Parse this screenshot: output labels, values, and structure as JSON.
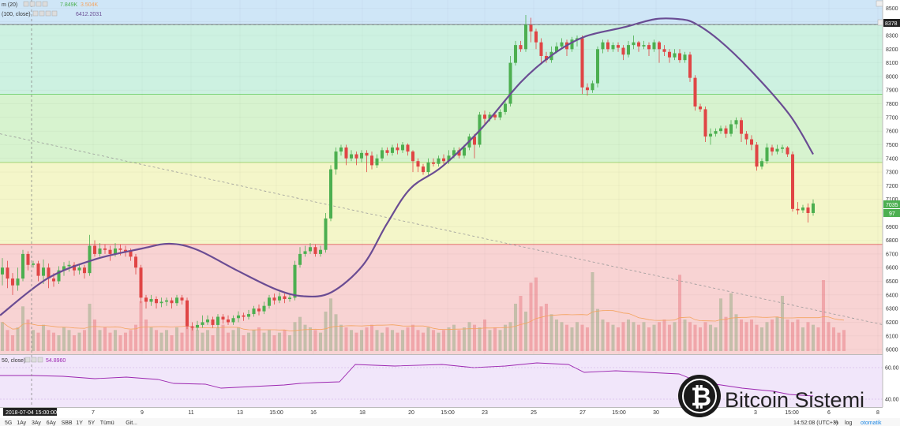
{
  "legend": {
    "line1_label": "m (20)",
    "line1_val1": "7.849K",
    "line1_val2": "3.504K",
    "line2_label": "(100, close)",
    "line2_val": "6412.2031",
    "rsi_label": "50, close)",
    "rsi_val": "54.8960"
  },
  "price_badges": {
    "top": "8378",
    "cur1": "7035",
    "cur2": "97"
  },
  "crosshair_date": "2018-07-04 15:00:00",
  "xaxis_labels": [
    "7",
    "9",
    "11",
    "13",
    "15:00",
    "16",
    "18",
    "20",
    "15:00",
    "23",
    "25",
    "27",
    "15:00",
    "30",
    "3",
    "15:00",
    "6",
    "8"
  ],
  "timeframes": [
    "5G",
    "1Ay",
    "3Ay",
    "6Ay",
    "SBB",
    "1Y",
    "5Y",
    "Tümü",
    "Git..."
  ],
  "bottom_right": {
    "clock": "14:52:08 (UTC+3)",
    "pct": "%",
    "log": "log",
    "auto": "otomatik"
  },
  "watermark": {
    "text": "Bitcoin Sistemi"
  },
  "chart_data": {
    "type": "candlestick",
    "y_ticks": [
      6000,
      6100,
      6200,
      6300,
      6400,
      6500,
      6600,
      6700,
      6800,
      6900,
      7000,
      7100,
      7200,
      7300,
      7400,
      7500,
      7600,
      7700,
      7800,
      7900,
      8000,
      8100,
      8200,
      8300,
      8400,
      8500
    ],
    "rsi_ticks": [
      "60.00",
      "40.00"
    ],
    "ylim": [
      5960,
      8560
    ],
    "zones": [
      {
        "from": 6770,
        "to": 5960,
        "color": "#f8d3d3"
      },
      {
        "from": 7370,
        "to": 6770,
        "color": "#f4f6c9"
      },
      {
        "from": 7870,
        "to": 7370,
        "color": "#d7f3cf"
      },
      {
        "from": 8380,
        "to": 7870,
        "color": "#cdf1e1"
      },
      {
        "from": 8560,
        "to": 8380,
        "color": "#cfe6f7"
      }
    ],
    "colors": {
      "up": "#4caf50",
      "down": "#e04545",
      "ma": "#6a4c93",
      "rsi": "#9c27b0",
      "vol_ma": "#f4a460"
    },
    "candles": [
      [
        6550,
        6600,
        6470,
        6670
      ],
      [
        6600,
        6520,
        6450,
        6650
      ],
      [
        6520,
        6470,
        6400,
        6560
      ],
      [
        6470,
        6520,
        6430,
        6600
      ],
      [
        6520,
        6700,
        6500,
        6730
      ],
      [
        6700,
        6620,
        6580,
        6720
      ],
      [
        6620,
        6630,
        6600,
        6650
      ],
      [
        6630,
        6540,
        6500,
        6650
      ],
      [
        6540,
        6600,
        6480,
        6660
      ],
      [
        6600,
        6520,
        6450,
        6630
      ],
      [
        6520,
        6500,
        6460,
        6560
      ],
      [
        6500,
        6580,
        6480,
        6610
      ],
      [
        6580,
        6610,
        6540,
        6640
      ],
      [
        6610,
        6620,
        6570,
        6650
      ],
      [
        6620,
        6580,
        6540,
        6640
      ],
      [
        6580,
        6600,
        6550,
        6630
      ],
      [
        6600,
        6560,
        6520,
        6620
      ],
      [
        6560,
        6760,
        6540,
        6840
      ],
      [
        6760,
        6700,
        6680,
        6800
      ],
      [
        6700,
        6740,
        6680,
        6780
      ],
      [
        6740,
        6730,
        6700,
        6770
      ],
      [
        6730,
        6700,
        6650,
        6760
      ],
      [
        6700,
        6740,
        6680,
        6780
      ],
      [
        6740,
        6730,
        6690,
        6770
      ],
      [
        6730,
        6720,
        6680,
        6760
      ],
      [
        6720,
        6680,
        6650,
        6740
      ],
      [
        6680,
        6600,
        6550,
        6700
      ],
      [
        6600,
        6380,
        6340,
        6620
      ],
      [
        6380,
        6350,
        6300,
        6400
      ],
      [
        6350,
        6370,
        6320,
        6400
      ],
      [
        6370,
        6340,
        6300,
        6390
      ],
      [
        6340,
        6350,
        6310,
        6380
      ],
      [
        6350,
        6360,
        6320,
        6380
      ],
      [
        6360,
        6340,
        6300,
        6380
      ],
      [
        6340,
        6380,
        6320,
        6400
      ],
      [
        6380,
        6360,
        6330,
        6400
      ],
      [
        6360,
        6170,
        6150,
        6380
      ],
      [
        6170,
        6160,
        6140,
        6200
      ],
      [
        6160,
        6180,
        6140,
        6210
      ],
      [
        6180,
        6200,
        6160,
        6250
      ],
      [
        6200,
        6220,
        6180,
        6250
      ],
      [
        6220,
        6180,
        6160,
        6240
      ],
      [
        6180,
        6240,
        6160,
        6260
      ],
      [
        6240,
        6220,
        6190,
        6260
      ],
      [
        6220,
        6200,
        6180,
        6250
      ],
      [
        6200,
        6230,
        6180,
        6250
      ],
      [
        6230,
        6250,
        6200,
        6280
      ],
      [
        6250,
        6240,
        6210,
        6270
      ],
      [
        6240,
        6260,
        6220,
        6290
      ],
      [
        6260,
        6300,
        6240,
        6320
      ],
      [
        6300,
        6280,
        6250,
        6330
      ],
      [
        6280,
        6320,
        6260,
        6350
      ],
      [
        6320,
        6380,
        6300,
        6400
      ],
      [
        6380,
        6360,
        6330,
        6410
      ],
      [
        6360,
        6390,
        6340,
        6420
      ],
      [
        6390,
        6370,
        6340,
        6410
      ],
      [
        6370,
        6380,
        6350,
        6410
      ],
      [
        6380,
        6620,
        6360,
        6650
      ],
      [
        6620,
        6700,
        6600,
        6750
      ],
      [
        6700,
        6720,
        6680,
        6760
      ],
      [
        6720,
        6750,
        6700,
        6780
      ],
      [
        6750,
        6700,
        6680,
        6770
      ],
      [
        6700,
        6730,
        6680,
        6760
      ],
      [
        6730,
        6960,
        6710,
        7000
      ],
      [
        6960,
        7320,
        6940,
        7350
      ],
      [
        7320,
        7450,
        7280,
        7480
      ],
      [
        7450,
        7480,
        7420,
        7500
      ],
      [
        7480,
        7400,
        7350,
        7500
      ],
      [
        7400,
        7430,
        7380,
        7460
      ],
      [
        7430,
        7400,
        7350,
        7450
      ],
      [
        7400,
        7440,
        7370,
        7460
      ],
      [
        7440,
        7420,
        7300,
        7460
      ],
      [
        7420,
        7350,
        7320,
        7450
      ],
      [
        7350,
        7400,
        7330,
        7430
      ],
      [
        7400,
        7460,
        7380,
        7480
      ],
      [
        7460,
        7440,
        7420,
        7480
      ],
      [
        7440,
        7480,
        7420,
        7500
      ],
      [
        7480,
        7460,
        7430,
        7510
      ],
      [
        7460,
        7500,
        7440,
        7520
      ],
      [
        7500,
        7450,
        7420,
        7510
      ],
      [
        7450,
        7380,
        7300,
        7460
      ],
      [
        7380,
        7340,
        7300,
        7400
      ],
      [
        7340,
        7300,
        7280,
        7360
      ],
      [
        7300,
        7370,
        7280,
        7400
      ],
      [
        7370,
        7360,
        7340,
        7400
      ],
      [
        7360,
        7400,
        7340,
        7420
      ],
      [
        7400,
        7380,
        7360,
        7430
      ],
      [
        7380,
        7420,
        7360,
        7460
      ],
      [
        7420,
        7460,
        7400,
        7480
      ],
      [
        7460,
        7420,
        7400,
        7480
      ],
      [
        7420,
        7480,
        7400,
        7500
      ],
      [
        7480,
        7560,
        7460,
        7580
      ],
      [
        7560,
        7500,
        7400,
        7580
      ],
      [
        7500,
        7720,
        7480,
        7740
      ],
      [
        7720,
        7690,
        7650,
        7750
      ],
      [
        7690,
        7720,
        7670,
        7740
      ],
      [
        7720,
        7700,
        7680,
        7740
      ],
      [
        7700,
        7740,
        7680,
        7760
      ],
      [
        7740,
        7800,
        7720,
        7820
      ],
      [
        7800,
        8100,
        7780,
        8150
      ],
      [
        8100,
        8230,
        8080,
        8260
      ],
      [
        8230,
        8200,
        8180,
        8260
      ],
      [
        8200,
        8380,
        8180,
        8450
      ],
      [
        8380,
        8330,
        8250,
        8430
      ],
      [
        8330,
        8250,
        8200,
        8350
      ],
      [
        8250,
        8150,
        8100,
        8280
      ],
      [
        8150,
        8120,
        8100,
        8180
      ],
      [
        8120,
        8180,
        8100,
        8220
      ],
      [
        8180,
        8220,
        8170,
        8250
      ],
      [
        8220,
        8250,
        8200,
        8280
      ],
      [
        8250,
        8200,
        8150,
        8270
      ],
      [
        8200,
        8270,
        8180,
        8290
      ],
      [
        8270,
        8280,
        8220,
        8300
      ],
      [
        8280,
        7920,
        7870,
        8300
      ],
      [
        7920,
        7900,
        7860,
        7950
      ],
      [
        7900,
        7950,
        7880,
        7970
      ],
      [
        7950,
        8200,
        7920,
        8220
      ],
      [
        8200,
        8250,
        8170,
        8270
      ],
      [
        8250,
        8200,
        8180,
        8270
      ],
      [
        8200,
        8230,
        8180,
        8250
      ],
      [
        8230,
        8210,
        8180,
        8250
      ],
      [
        8210,
        8160,
        8120,
        8230
      ],
      [
        8160,
        8230,
        8140,
        8260
      ],
      [
        8230,
        8250,
        8200,
        8300
      ],
      [
        8250,
        8220,
        8180,
        8260
      ],
      [
        8220,
        8230,
        8200,
        8260
      ],
      [
        8230,
        8200,
        8150,
        8250
      ],
      [
        8200,
        8250,
        8180,
        8270
      ],
      [
        8250,
        8200,
        8100,
        8260
      ],
      [
        8200,
        8180,
        8150,
        8230
      ],
      [
        8180,
        8140,
        8100,
        8200
      ],
      [
        8140,
        8170,
        8120,
        8200
      ],
      [
        8170,
        8120,
        8100,
        8200
      ],
      [
        8120,
        8160,
        8100,
        8180
      ],
      [
        8160,
        7990,
        7960,
        8180
      ],
      [
        7990,
        7780,
        7750,
        8010
      ],
      [
        7780,
        7760,
        7740,
        7800
      ],
      [
        7760,
        7560,
        7520,
        7780
      ],
      [
        7560,
        7580,
        7500,
        7620
      ],
      [
        7580,
        7600,
        7560,
        7620
      ],
      [
        7600,
        7620,
        7580,
        7640
      ],
      [
        7620,
        7580,
        7550,
        7640
      ],
      [
        7580,
        7650,
        7560,
        7680
      ],
      [
        7650,
        7680,
        7620,
        7700
      ],
      [
        7680,
        7580,
        7520,
        7700
      ],
      [
        7580,
        7540,
        7500,
        7600
      ],
      [
        7540,
        7500,
        7460,
        7570
      ],
      [
        7500,
        7340,
        7310,
        7520
      ],
      [
        7340,
        7380,
        7320,
        7400
      ],
      [
        7380,
        7480,
        7360,
        7510
      ],
      [
        7480,
        7450,
        7420,
        7500
      ],
      [
        7450,
        7470,
        7430,
        7500
      ],
      [
        7470,
        7480,
        7440,
        7500
      ],
      [
        7480,
        7430,
        7410,
        7490
      ],
      [
        7430,
        7030,
        7010,
        7450
      ],
      [
        7030,
        7020,
        6990,
        7080
      ],
      [
        7020,
        7040,
        7000,
        7060
      ],
      [
        7040,
        7000,
        6930,
        7070
      ],
      [
        7000,
        7070,
        6980,
        7100
      ]
    ],
    "volume": [
      0.55,
      0.4,
      0.3,
      0.45,
      0.85,
      0.6,
      0.4,
      0.35,
      0.5,
      0.4,
      0.35,
      0.3,
      0.45,
      0.4,
      0.3,
      0.35,
      0.4,
      0.9,
      0.6,
      0.4,
      0.45,
      0.35,
      0.4,
      0.3,
      0.35,
      0.4,
      0.5,
      0.95,
      0.6,
      0.45,
      0.4,
      0.35,
      0.4,
      0.3,
      0.45,
      0.35,
      0.7,
      0.45,
      0.4,
      0.35,
      0.4,
      0.3,
      0.45,
      0.5,
      0.35,
      0.4,
      0.45,
      0.3,
      0.35,
      0.4,
      0.45,
      0.35,
      0.4,
      0.3,
      0.35,
      0.4,
      0.3,
      0.55,
      0.65,
      0.5,
      0.45,
      0.4,
      0.35,
      0.75,
      1.0,
      0.7,
      0.5,
      0.45,
      0.4,
      0.35,
      0.4,
      0.45,
      0.5,
      0.4,
      0.35,
      0.45,
      0.4,
      0.35,
      0.4,
      0.45,
      0.5,
      0.4,
      0.35,
      0.45,
      0.4,
      0.35,
      0.4,
      0.45,
      0.5,
      0.4,
      0.45,
      0.55,
      0.5,
      0.45,
      0.6,
      0.4,
      0.45,
      0.4,
      0.5,
      0.55,
      0.9,
      1.05,
      0.75,
      1.3,
      1.4,
      0.85,
      0.9,
      0.7,
      0.6,
      0.55,
      0.5,
      0.45,
      0.55,
      0.5,
      0.45,
      1.5,
      0.8,
      0.6,
      0.55,
      0.5,
      0.45,
      0.55,
      0.6,
      0.55,
      0.5,
      0.55,
      0.45,
      0.5,
      0.55,
      0.6,
      0.5,
      0.55,
      1.45,
      0.6,
      0.55,
      0.5,
      0.45,
      0.55,
      0.5,
      0.45,
      1.0,
      0.65,
      1.1,
      0.7,
      0.6,
      0.55,
      0.6,
      0.5,
      0.45,
      0.55,
      0.6,
      0.65,
      1.05,
      0.6,
      0.55,
      0.6,
      0.45,
      0.55,
      0.5,
      0.45,
      1.35,
      0.55,
      0.45,
      0.35,
      0.4
    ],
    "ma_curve": [
      [
        0,
        6250
      ],
      [
        60,
        6520
      ],
      [
        120,
        6660
      ],
      [
        180,
        6740
      ],
      [
        215,
        6775
      ],
      [
        250,
        6730
      ],
      [
        300,
        6580
      ],
      [
        350,
        6440
      ],
      [
        385,
        6390
      ],
      [
        420,
        6420
      ],
      [
        460,
        6620
      ],
      [
        490,
        6920
      ],
      [
        520,
        7180
      ],
      [
        560,
        7340
      ],
      [
        610,
        7620
      ],
      [
        660,
        7960
      ],
      [
        700,
        8160
      ],
      [
        740,
        8290
      ],
      [
        790,
        8360
      ],
      [
        830,
        8420
      ],
      [
        860,
        8420
      ],
      [
        880,
        8390
      ],
      [
        910,
        8270
      ],
      [
        950,
        8050
      ],
      [
        1000,
        7720
      ],
      [
        1030,
        7430
      ]
    ],
    "trend_line": [
      [
        0,
        7580
      ],
      [
        1120,
        6180
      ]
    ],
    "rsi": [
      [
        0,
        55
      ],
      [
        40,
        55
      ],
      [
        80,
        54.5
      ],
      [
        120,
        53
      ],
      [
        160,
        54
      ],
      [
        200,
        52.5
      ],
      [
        220,
        50
      ],
      [
        260,
        49.5
      ],
      [
        280,
        47
      ],
      [
        320,
        48
      ],
      [
        360,
        49
      ],
      [
        380,
        50
      ],
      [
        400,
        50.5
      ],
      [
        430,
        51
      ],
      [
        450,
        62
      ],
      [
        500,
        61
      ],
      [
        560,
        62
      ],
      [
        600,
        60
      ],
      [
        640,
        61
      ],
      [
        680,
        63
      ],
      [
        720,
        62
      ],
      [
        740,
        57
      ],
      [
        780,
        58
      ],
      [
        820,
        57
      ],
      [
        860,
        56
      ],
      [
        880,
        52
      ],
      [
        900,
        50
      ],
      [
        940,
        47
      ],
      [
        980,
        45
      ],
      [
        1000,
        43
      ],
      [
        1030,
        42
      ]
    ]
  }
}
